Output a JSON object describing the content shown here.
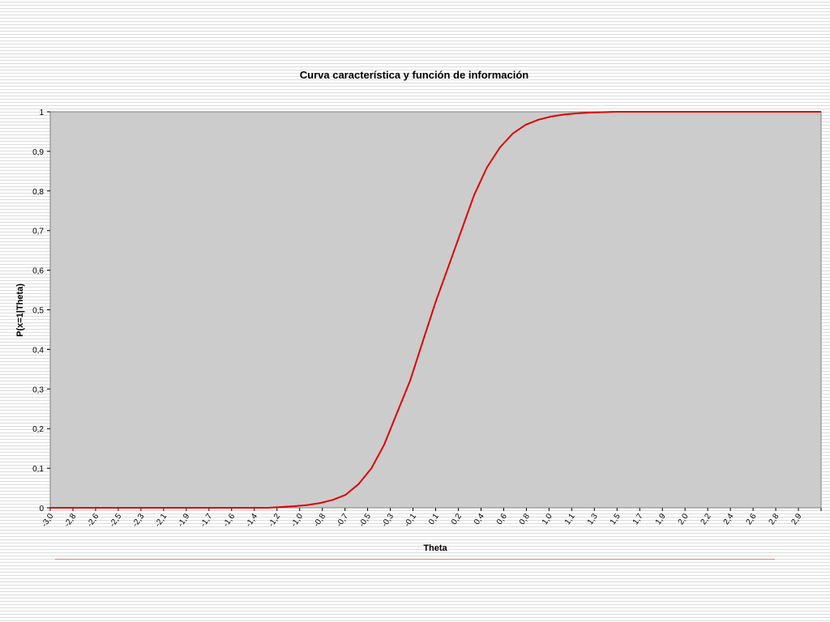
{
  "chart_data": {
    "type": "line",
    "title": "Curva característica y función de información",
    "xlabel": "Theta",
    "ylabel": "P(x=1|Theta)",
    "x_tick_labels": [
      "-3,0",
      "-2,8",
      "-2,6",
      "-2,5",
      "-2,3",
      "-2,1",
      "-1,9",
      "-1,7",
      "-1,6",
      "-1,4",
      "-1,2",
      "-1,0",
      "-0,8",
      "-0,7",
      "-0,5",
      "-0,3",
      "-0,1",
      "0,1",
      "0,2",
      "0,4",
      "0,6",
      "0,8",
      "1,0",
      "1,1",
      "1,3",
      "1,5",
      "1,7",
      "1,9",
      "2,0",
      "2,2",
      "2,4",
      "2,6",
      "2,8",
      "2,9"
    ],
    "y_tick_labels": [
      "0",
      "0,1",
      "0,2",
      "0,3",
      "0,4",
      "0,5",
      "0,6",
      "0,7",
      "0,8",
      "0,9",
      "1"
    ],
    "ylim": [
      0,
      1
    ],
    "xlim": [
      -3.0,
      3.0
    ],
    "grid": false,
    "plot_background": "#cccccc",
    "series": [
      {
        "color": "#e00000",
        "x": [
          -3.0,
          -2.9,
          -2.8,
          -2.7,
          -2.6,
          -2.5,
          -2.4,
          -2.3,
          -2.2,
          -2.1,
          -2.0,
          -1.9,
          -1.8,
          -1.7,
          -1.6,
          -1.5,
          -1.4,
          -1.3,
          -1.2,
          -1.1,
          -1.0,
          -0.9,
          -0.8,
          -0.7,
          -0.6,
          -0.5,
          -0.4,
          -0.3,
          -0.2,
          -0.1,
          0.0,
          0.1,
          0.2,
          0.3,
          0.4,
          0.5,
          0.6,
          0.7,
          0.8,
          0.9,
          1.0,
          1.1,
          1.2,
          1.3,
          1.4,
          1.5,
          1.6,
          1.7,
          1.8,
          1.9,
          2.0,
          2.1,
          2.2,
          2.3,
          2.4,
          2.5,
          2.6,
          2.7,
          2.8,
          2.9,
          3.0
        ],
        "values": [
          0.0,
          0.0,
          0.0,
          0.0,
          0.0,
          0.0,
          0.0,
          0.0,
          0.0,
          0.0,
          0.0,
          0.0,
          0.0,
          0.0,
          0.0,
          0.0,
          0.0,
          0.0,
          0.002,
          0.004,
          0.007,
          0.012,
          0.02,
          0.033,
          0.06,
          0.1,
          0.16,
          0.24,
          0.32,
          0.42,
          0.52,
          0.61,
          0.7,
          0.79,
          0.86,
          0.91,
          0.945,
          0.967,
          0.98,
          0.988,
          0.993,
          0.996,
          0.998,
          0.999,
          1.0,
          1.0,
          1.0,
          1.0,
          1.0,
          1.0,
          1.0,
          1.0,
          1.0,
          1.0,
          1.0,
          1.0,
          1.0,
          1.0,
          1.0,
          1.0,
          1.0
        ]
      }
    ]
  }
}
